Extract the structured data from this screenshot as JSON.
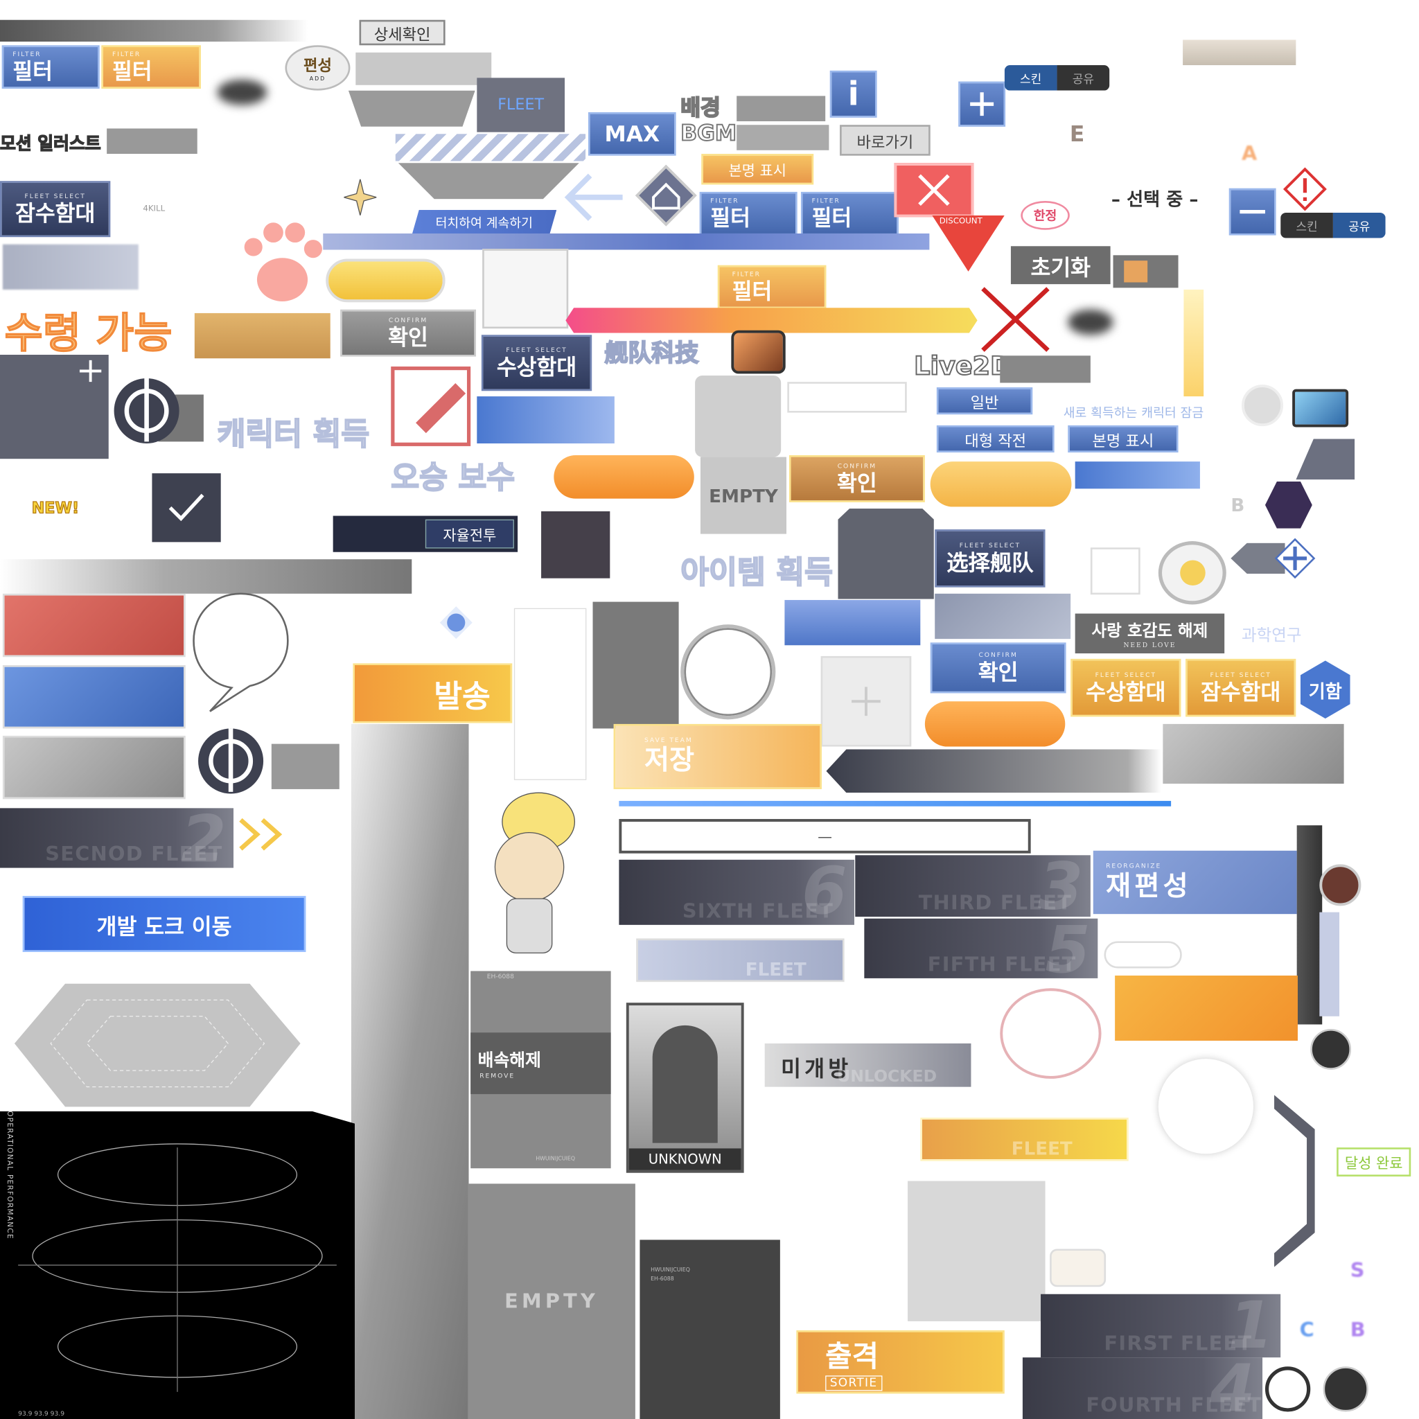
{
  "labels": {
    "filter_a": {
      "caption": "FILTER",
      "label": "필터"
    },
    "filter_b": {
      "caption": "FILTER",
      "label": "필터"
    },
    "filter_c": {
      "caption": "FILTER",
      "label": "필터"
    },
    "filter_d": {
      "caption": "FILTER",
      "label": "필터"
    },
    "filter_e": {
      "caption": "FILTER",
      "label": "필터"
    },
    "add_bubble": {
      "label": "편성",
      "caption": "ADD"
    },
    "detail": "상세확인",
    "fleet_tag": "FLEET",
    "max": "MAX",
    "bgm": {
      "line1": "배경",
      "line2": "BGM"
    },
    "shortcut": "바로가기",
    "info": "i",
    "skin_share_a": {
      "skin": "스킨",
      "share": "공유"
    },
    "skin_share_b": {
      "skin": "스킨",
      "share": "공유"
    },
    "e_letter": "E",
    "motion_illust": "모션 일러스트",
    "fs_submarine_a": {
      "caption": "FLEET SELECT",
      "label": "잠수함대"
    },
    "kill": "4KILL",
    "touch": "터치하여 계속하기",
    "real_name_a": "본명 표시",
    "real_name_b": "본명 표시",
    "discount": "DISCOUNT",
    "limited": "한정",
    "selecting": "– 선택 중 –",
    "reset": "초기화",
    "claimable": "수령 가능",
    "confirm_gray": {
      "caption": "CONFIRM",
      "label": "확인"
    },
    "fs_surface_a": {
      "caption": "FLEET SELECT",
      "label": "수상함대"
    },
    "fleet_tech": "舰队科技",
    "live2d": "Live2D",
    "char_get": "캐릭터 획득",
    "empty_a": "EMPTY",
    "normal": "일반",
    "large_op": "대형 작전",
    "lock_new": "새로 획득하는 캐릭터 잠금",
    "victory_reward": "오승 보수",
    "confirm_orange": {
      "caption": "CONFIRM",
      "label": "확인"
    },
    "new": "NEW!",
    "auto_battle": "자율전투",
    "item_get": "아이템 획득",
    "fs_select_cn": {
      "caption": "FLEET SELECT",
      "label": "选择舰队"
    },
    "love_unlock": {
      "label": "사랑 호감도 해제",
      "caption": "NEED LOVE"
    },
    "research": "과학연구",
    "send": "발송",
    "confirm_blue": {
      "caption": "CONFIRM",
      "label": "확인"
    },
    "fs_surface_b": {
      "caption": "FLEET SELECT",
      "label": "수상함대"
    },
    "fs_submarine_b": {
      "caption": "FLEET SELECT",
      "label": "잠수함대"
    },
    "flagship": "기함",
    "save": {
      "caption": "SAVE TEAM",
      "label": "저장"
    },
    "second_fleet": {
      "name": "SECNOD FLEET",
      "number": "2"
    },
    "input_dash": "—",
    "sixth_fleet": {
      "name": "SIXTH FLEET",
      "number": "6"
    },
    "third_fleet": {
      "name": "THIRD FLEET",
      "number": "3"
    },
    "fifth_fleet": {
      "name": "FIFTH FLEET",
      "number": "5"
    },
    "first_fleet": {
      "name": "FIRST FLEET",
      "number": "1"
    },
    "fourth_fleet": {
      "name": "FOURTH FLEET",
      "number": "4"
    },
    "fleet_plain": "FLEET",
    "fleet_yellow": "FLEET",
    "reorganize": {
      "caption": "REORGANIZE",
      "label": "재편성"
    },
    "dev_dock": "개발 도크 이동",
    "op_perf": "OPERATIONAL PERFORMANCE",
    "op_values": "93.9 93.9 93.9",
    "remove": {
      "label": "배속해제",
      "caption": "REMOVE",
      "code": "EH-6088",
      "serial": "HWUINIJCUIEQ"
    },
    "unknown": "UNKNOWN",
    "locked": {
      "label": "미개방",
      "caption": "UNLOCKED"
    },
    "achieved": "달성 완료",
    "empty_b": "EMPTY",
    "card_dark": {
      "serial": "HWUINIJCUIEQ",
      "code": "EH-6088"
    },
    "sortie": {
      "label": "출격",
      "caption": "SORTIE"
    },
    "grades": {
      "a": "A",
      "d": "B",
      "s": "S",
      "c": "C",
      "b": "B"
    }
  }
}
